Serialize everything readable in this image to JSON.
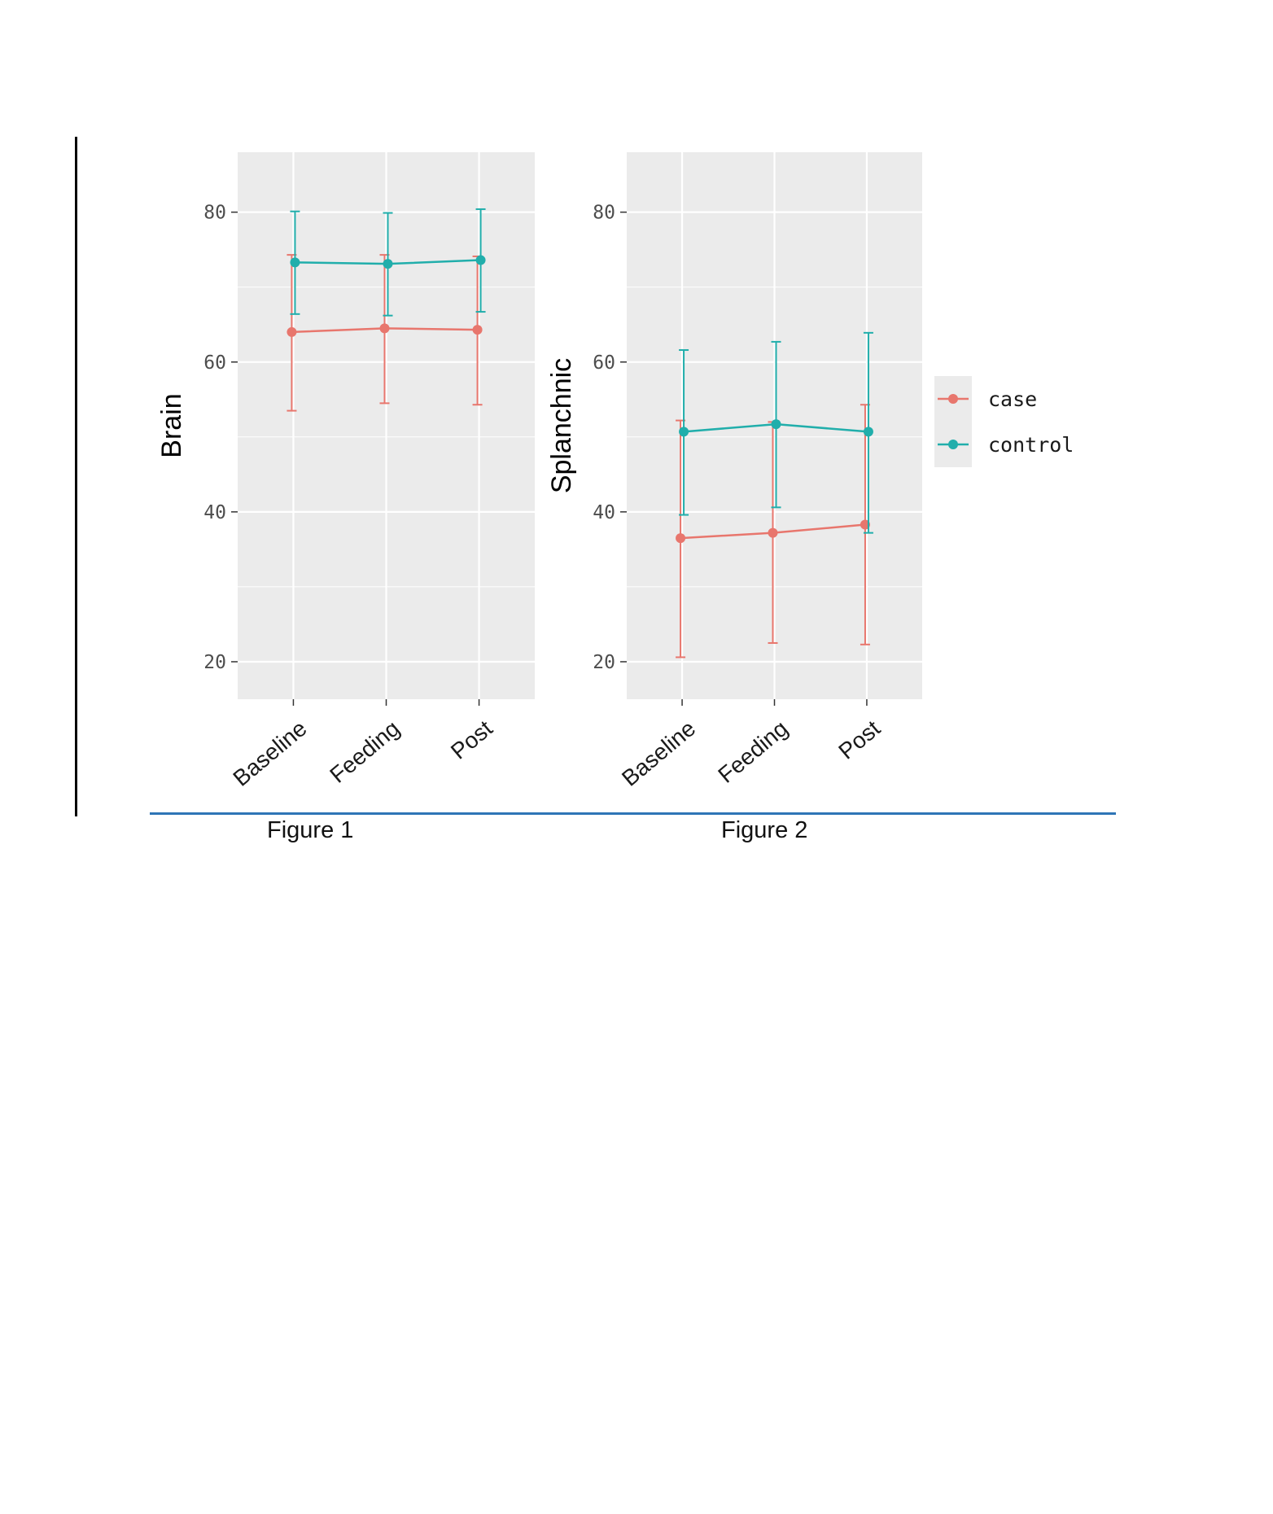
{
  "captions": [
    "Figure 1",
    "Figure 2"
  ],
  "colors": {
    "case": "#e8766d",
    "control": "#21aeab",
    "panel": "#ebebeb",
    "grid": "#ffffff"
  },
  "chart_data": [
    {
      "type": "line",
      "ylabel": "Brain",
      "xlabel": "",
      "categories": [
        "Baseline",
        "Feeding",
        "Post"
      ],
      "ylim": [
        15,
        88
      ],
      "yticks": [
        20,
        40,
        60,
        80
      ],
      "series": [
        {
          "name": "case",
          "values": [
            64.0,
            64.5,
            64.3
          ],
          "lower": [
            53.5,
            54.5,
            54.3
          ],
          "upper": [
            74.3,
            74.3,
            74.1
          ]
        },
        {
          "name": "control",
          "values": [
            73.3,
            73.1,
            73.6
          ],
          "lower": [
            66.4,
            66.2,
            66.7
          ],
          "upper": [
            80.1,
            79.9,
            80.4
          ]
        }
      ]
    },
    {
      "type": "line",
      "ylabel": "Splanchnic",
      "xlabel": "",
      "categories": [
        "Baseline",
        "Feeding",
        "Post"
      ],
      "ylim": [
        15,
        88
      ],
      "yticks": [
        20,
        40,
        60,
        80
      ],
      "legend": {
        "position": "right",
        "entries": [
          "case",
          "control"
        ]
      },
      "series": [
        {
          "name": "case",
          "values": [
            36.5,
            37.2,
            38.3
          ],
          "lower": [
            20.6,
            22.5,
            22.3
          ],
          "upper": [
            52.2,
            52.0,
            54.3
          ]
        },
        {
          "name": "control",
          "values": [
            50.7,
            51.7,
            50.7
          ],
          "lower": [
            39.6,
            40.6,
            37.2
          ],
          "upper": [
            61.6,
            62.7,
            63.9
          ]
        }
      ]
    }
  ]
}
